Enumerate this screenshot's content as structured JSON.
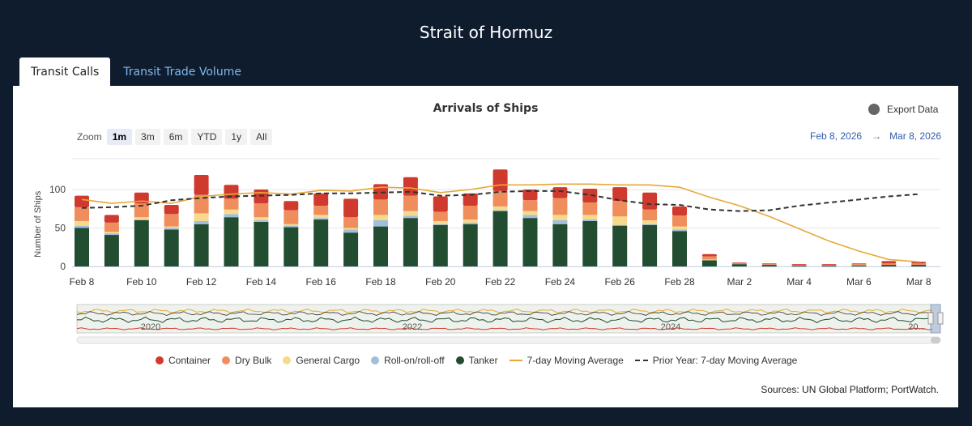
{
  "page": {
    "title": "Strait of Hormuz"
  },
  "tabs": [
    {
      "label": "Transit Calls",
      "active": true
    },
    {
      "label": "Transit Trade Volume",
      "active": false
    }
  ],
  "export_label": "Export Data",
  "zoom": {
    "label": "Zoom",
    "buttons": [
      "1m",
      "3m",
      "6m",
      "YTD",
      "1y",
      "All"
    ],
    "selected": "1m"
  },
  "date_range": {
    "from": "Feb 8, 2026",
    "to": "Mar 8, 2026",
    "arrow": "→"
  },
  "navigator": {
    "labels": [
      "2020",
      "2022",
      "2024",
      "20..."
    ]
  },
  "sources": "Sources: UN Global Platform; PortWatch.",
  "colors": {
    "container": "#d03a2e",
    "dry_bulk": "#ef8e5c",
    "general_cargo": "#f7d98b",
    "roro": "#9fbfdc",
    "tanker": "#234d31",
    "ma7": "#e8a838",
    "prior_ma7": "#333333"
  },
  "chart_data": {
    "type": "bar",
    "stacked": true,
    "title": "Arrivals of Ships",
    "xlabel": "",
    "ylabel": "Number of Ships",
    "ylim": [
      0,
      140
    ],
    "yticks": [
      0,
      50,
      100
    ],
    "categories": [
      "Feb 8",
      "Feb 9",
      "Feb 10",
      "Feb 11",
      "Feb 12",
      "Feb 13",
      "Feb 14",
      "Feb 15",
      "Feb 16",
      "Feb 17",
      "Feb 18",
      "Feb 19",
      "Feb 20",
      "Feb 21",
      "Feb 22",
      "Feb 23",
      "Feb 24",
      "Feb 25",
      "Feb 26",
      "Feb 27",
      "Feb 28",
      "Mar 1",
      "Mar 2",
      "Mar 3",
      "Mar 4",
      "Mar 5",
      "Mar 6",
      "Mar 7",
      "Mar 8"
    ],
    "x_tick_labels": [
      "Feb 8",
      "Feb 10",
      "Feb 12",
      "Feb 14",
      "Feb 16",
      "Feb 18",
      "Feb 20",
      "Feb 22",
      "Feb 24",
      "Feb 26",
      "Feb 28",
      "Mar 2",
      "Mar 4",
      "Mar 6",
      "Mar 8"
    ],
    "series": [
      {
        "name": "Tanker",
        "color_key": "tanker",
        "values": [
          50,
          41,
          60,
          48,
          55,
          64,
          58,
          51,
          61,
          44,
          52,
          63,
          54,
          55,
          72,
          63,
          55,
          59,
          53,
          54,
          46,
          8,
          3,
          2,
          1,
          1,
          1,
          2,
          2
        ]
      },
      {
        "name": "Roll-on/roll-off",
        "color_key": "roro",
        "values": [
          3,
          2,
          1,
          2,
          4,
          4,
          2,
          2,
          2,
          4,
          8,
          3,
          1,
          2,
          1,
          4,
          5,
          2,
          1,
          1,
          2,
          0,
          0,
          0,
          0,
          0,
          0,
          0,
          0
        ]
      },
      {
        "name": "General Cargo",
        "color_key": "general_cargo",
        "values": [
          6,
          2,
          3,
          2,
          10,
          6,
          4,
          2,
          4,
          2,
          7,
          6,
          4,
          4,
          5,
          5,
          7,
          6,
          11,
          5,
          4,
          1,
          0,
          0,
          0,
          0,
          0,
          0,
          0
        ]
      },
      {
        "name": "Dry Bulk",
        "color_key": "dry_bulk",
        "values": [
          18,
          12,
          18,
          16,
          24,
          14,
          18,
          18,
          12,
          14,
          20,
          20,
          12,
          18,
          20,
          14,
          22,
          16,
          20,
          14,
          14,
          4,
          1,
          1,
          1,
          1,
          2,
          2,
          2
        ]
      },
      {
        "name": "Container",
        "color_key": "container",
        "values": [
          15,
          10,
          14,
          12,
          26,
          18,
          18,
          12,
          16,
          24,
          20,
          24,
          20,
          16,
          28,
          14,
          14,
          18,
          18,
          22,
          12,
          3,
          1,
          1,
          1,
          1,
          1,
          3,
          2
        ]
      }
    ],
    "lines": [
      {
        "name": "7-day Moving Average",
        "color_key": "ma7",
        "style": "solid",
        "values": [
          87,
          82,
          85,
          82,
          91,
          94,
          96,
          94,
          99,
          98,
          103,
          102,
          96,
          100,
          106,
          106,
          107,
          107,
          106,
          106,
          103,
          90,
          79,
          65,
          49,
          33,
          20,
          9,
          6
        ]
      },
      {
        "name": "Prior Year: 7-day Moving Average",
        "color_key": "prior_ma7",
        "style": "dashed",
        "values": [
          76,
          77,
          79,
          86,
          89,
          91,
          92,
          93,
          95,
          95,
          96,
          97,
          92,
          93,
          97,
          98,
          98,
          93,
          86,
          81,
          80,
          74,
          72,
          73,
          79,
          83,
          87,
          91,
          94
        ]
      }
    ],
    "legend": [
      "Container",
      "Dry Bulk",
      "General Cargo",
      "Roll-on/roll-off",
      "Tanker",
      "7-day Moving Average",
      "Prior Year: 7-day Moving Average"
    ],
    "legend_position": "bottom"
  }
}
